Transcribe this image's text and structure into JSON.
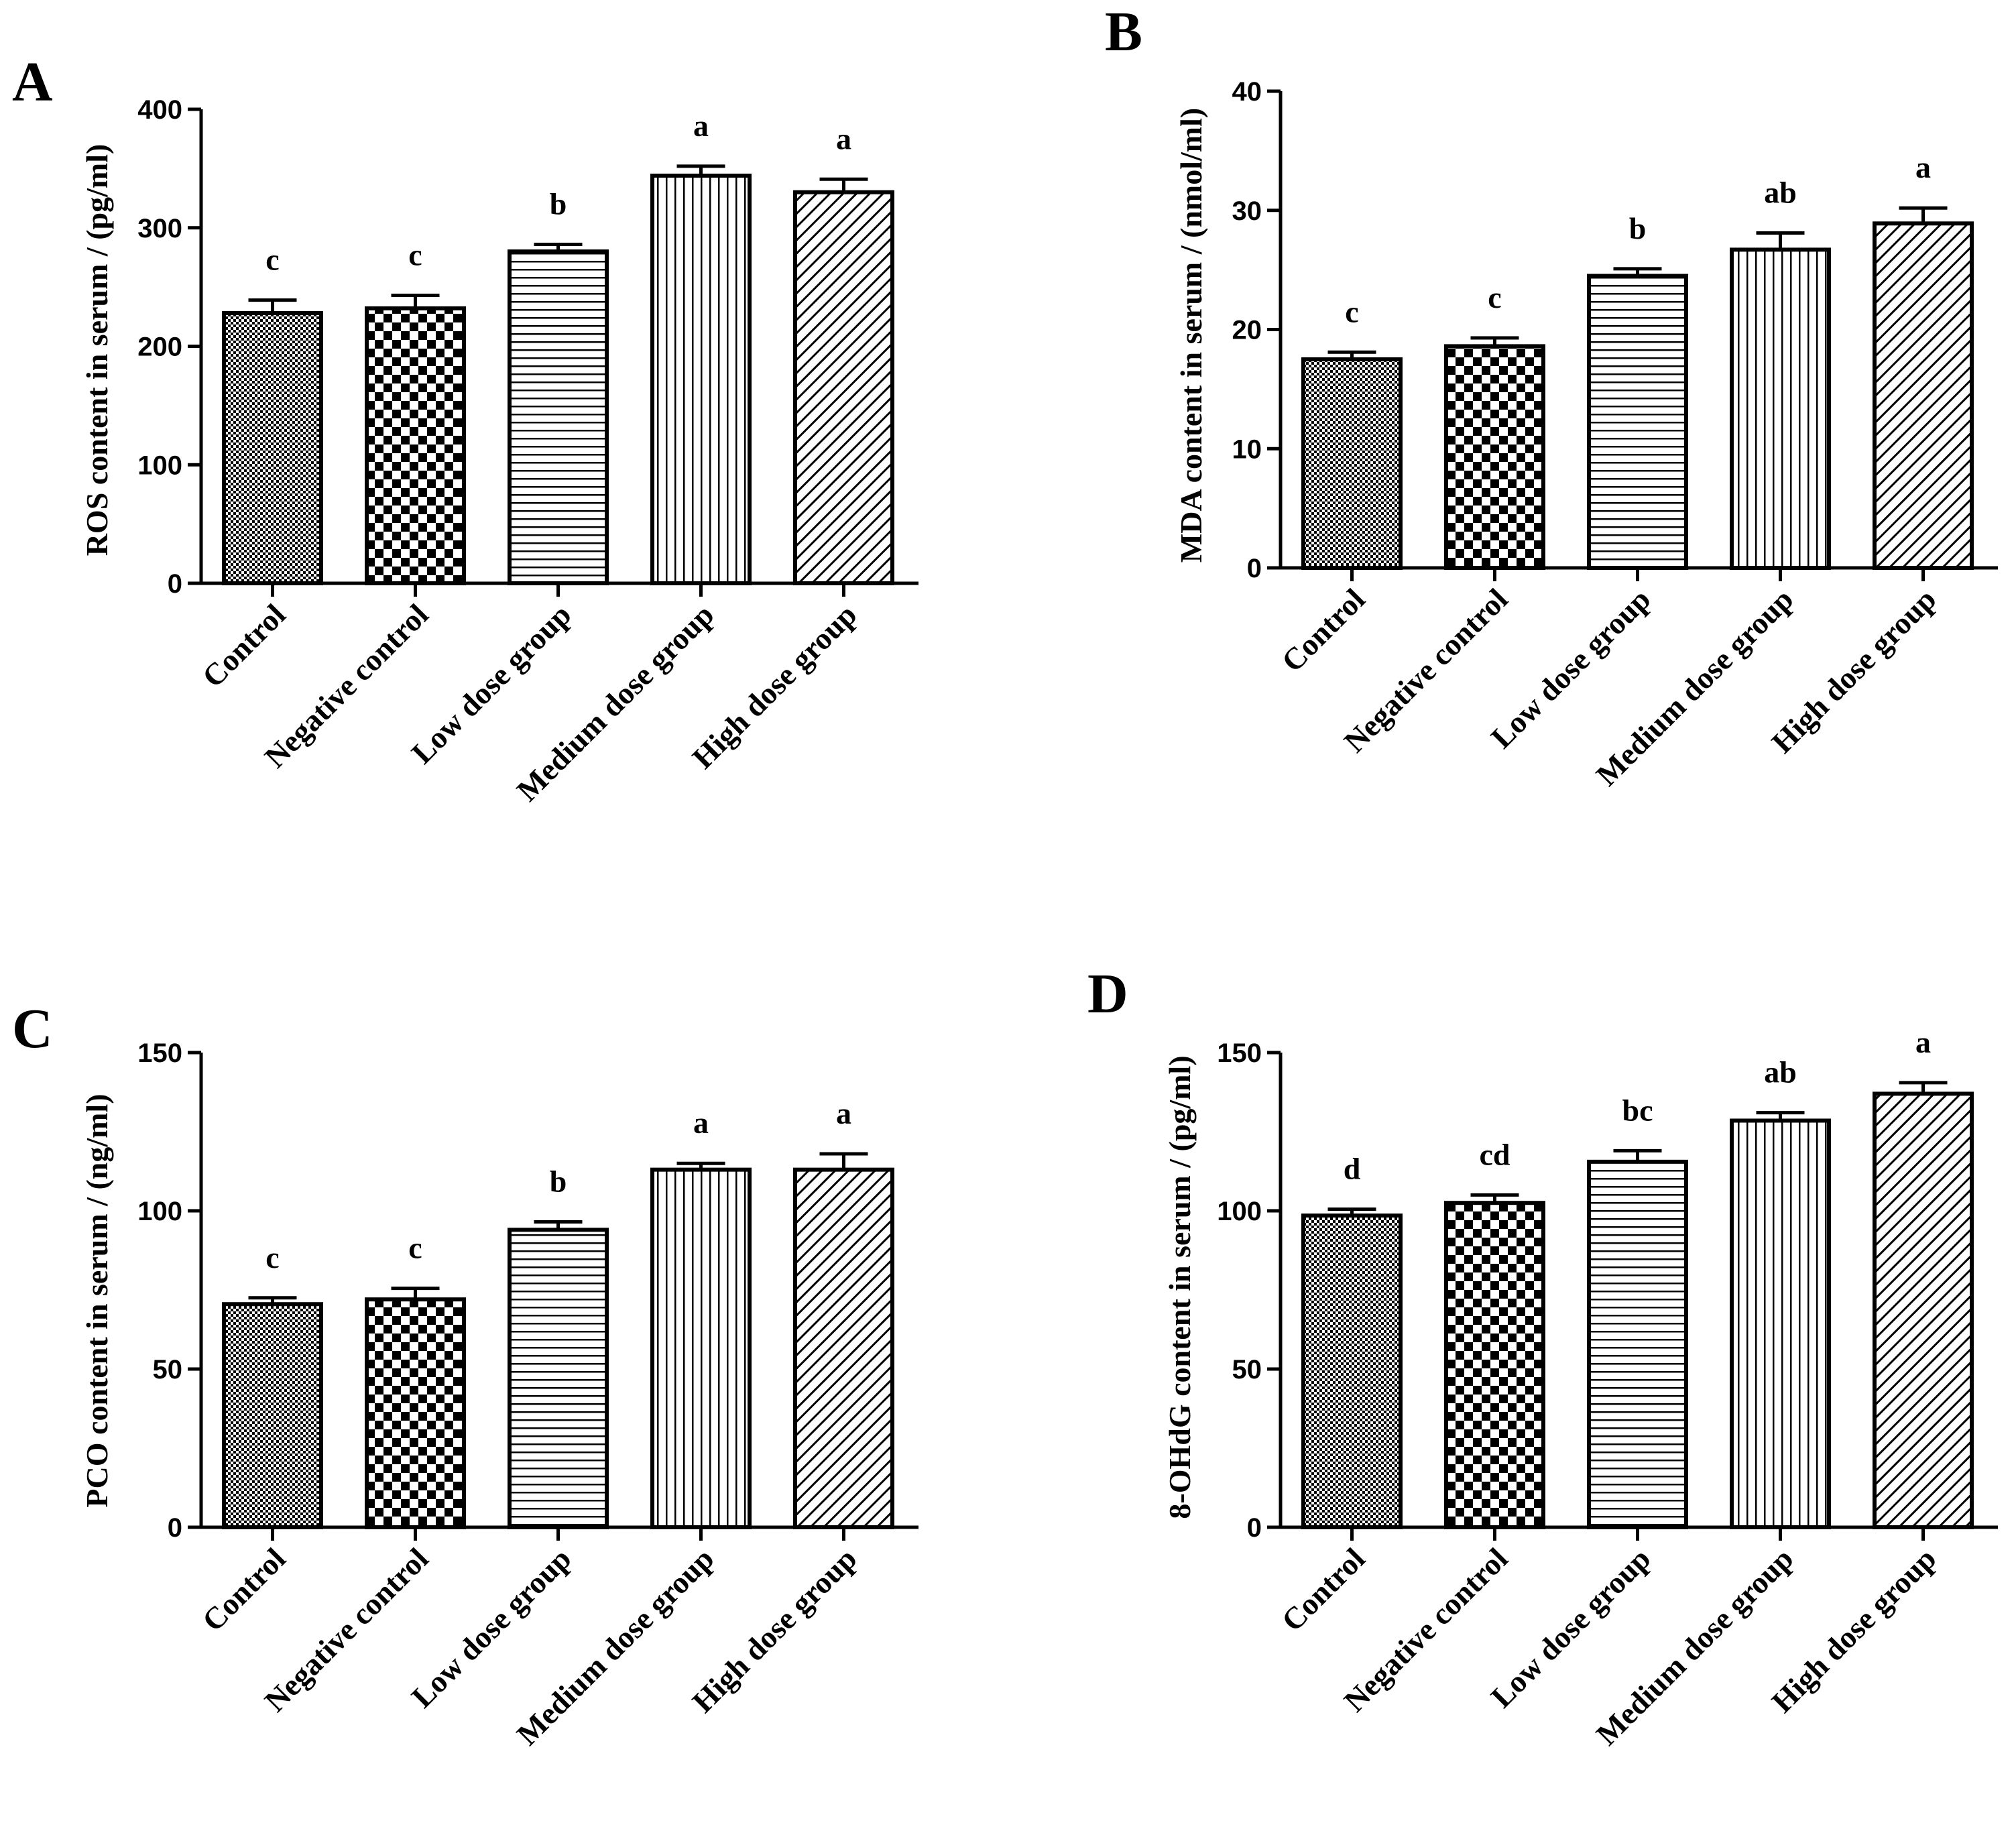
{
  "figure": {
    "categories": [
      "Control",
      "Negative control",
      "Low dose group",
      "Medium dose group",
      "High dose group"
    ],
    "patterns": [
      "dots",
      "checker",
      "hlines",
      "vlines",
      "diag"
    ]
  },
  "chart_data": [
    {
      "type": "bar",
      "panel": "A",
      "categories": [
        "Control",
        "Negative control",
        "Low dose group",
        "Medium dose group",
        "High dose group"
      ],
      "values": [
        228,
        232,
        280,
        344,
        330
      ],
      "errors": [
        11,
        11,
        6,
        8,
        11
      ],
      "significance": [
        "c",
        "c",
        "b",
        "a",
        "a"
      ],
      "ylabel": "ROS content in serum / (pg/ml)",
      "xlabel": "",
      "ylim": [
        0,
        400
      ],
      "yticks": [
        0,
        100,
        200,
        300,
        400
      ]
    },
    {
      "type": "bar",
      "panel": "B",
      "categories": [
        "Control",
        "Negative control",
        "Low dose group",
        "Medium dose group",
        "High dose group"
      ],
      "values": [
        17.5,
        18.6,
        24.5,
        26.7,
        28.9
      ],
      "errors": [
        0.6,
        0.7,
        0.6,
        1.4,
        1.3
      ],
      "significance": [
        "c",
        "c",
        "b",
        "ab",
        "a"
      ],
      "ylabel": "MDA  content in serum / (nmol/ml)",
      "xlabel": "",
      "ylim": [
        0,
        40
      ],
      "yticks": [
        0,
        10,
        20,
        30,
        40
      ]
    },
    {
      "type": "bar",
      "panel": "C",
      "categories": [
        "Control",
        "Negative control",
        "Low dose group",
        "Medium dose group",
        "High dose group"
      ],
      "values": [
        70.5,
        72,
        94,
        113,
        113
      ],
      "errors": [
        2,
        3.5,
        2.5,
        2,
        5
      ],
      "significance": [
        "c",
        "c",
        "b",
        "a",
        "a"
      ],
      "ylabel": "PCO  content in serum / (ng/ml)",
      "xlabel": "",
      "ylim": [
        0,
        150
      ],
      "yticks": [
        0,
        50,
        100,
        150
      ]
    },
    {
      "type": "bar",
      "panel": "D",
      "categories": [
        "Control",
        "Negative control",
        "Low dose group",
        "Medium dose group",
        "High dose group"
      ],
      "values": [
        98.5,
        102.5,
        115.5,
        128.5,
        137
      ],
      "errors": [
        2,
        2.5,
        3.5,
        2.5,
        3.5
      ],
      "significance": [
        "d",
        "cd",
        "bc",
        "ab",
        "a"
      ],
      "ylabel": "8-OHdG  content in serum / (pg/ml)",
      "xlabel": "",
      "ylim": [
        0,
        150
      ],
      "yticks": [
        0,
        50,
        100,
        150
      ]
    }
  ]
}
